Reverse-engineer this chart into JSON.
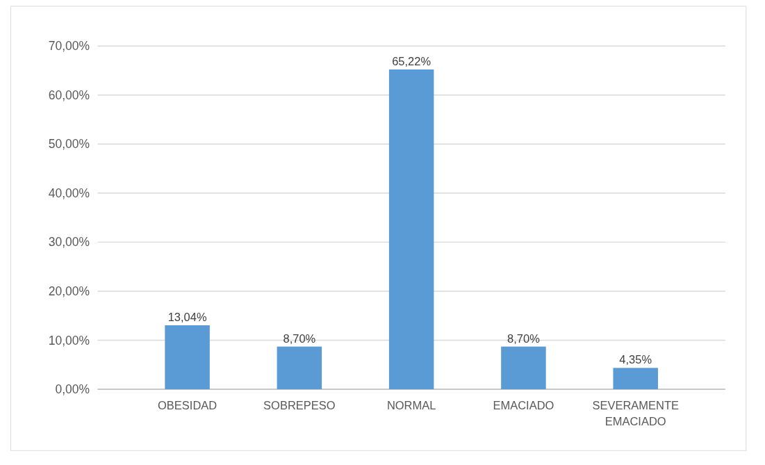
{
  "chart_data": {
    "type": "bar",
    "categories": [
      "OBESIDAD",
      "SOBREPESO",
      "NORMAL",
      "EMACIADO",
      "SEVERAMENTE EMACIADO"
    ],
    "values": [
      13.04,
      8.7,
      65.22,
      8.7,
      4.35
    ],
    "value_labels": [
      "13,04%",
      "8,70%",
      "65,22%",
      "8,70%",
      "4,35%"
    ],
    "color": "#5b9bd5",
    "ylim": [
      0,
      70
    ],
    "yticks": [
      {
        "value": 0,
        "label": "0,00%"
      },
      {
        "value": 10,
        "label": "10,00%"
      },
      {
        "value": 20,
        "label": "20,00%"
      },
      {
        "value": 30,
        "label": "30,00%"
      },
      {
        "value": 40,
        "label": "40,00%"
      },
      {
        "value": 50,
        "label": "50,00%"
      },
      {
        "value": 60,
        "label": "60,00%"
      },
      {
        "value": 70,
        "label": "70,00%"
      }
    ],
    "grid": "y"
  }
}
